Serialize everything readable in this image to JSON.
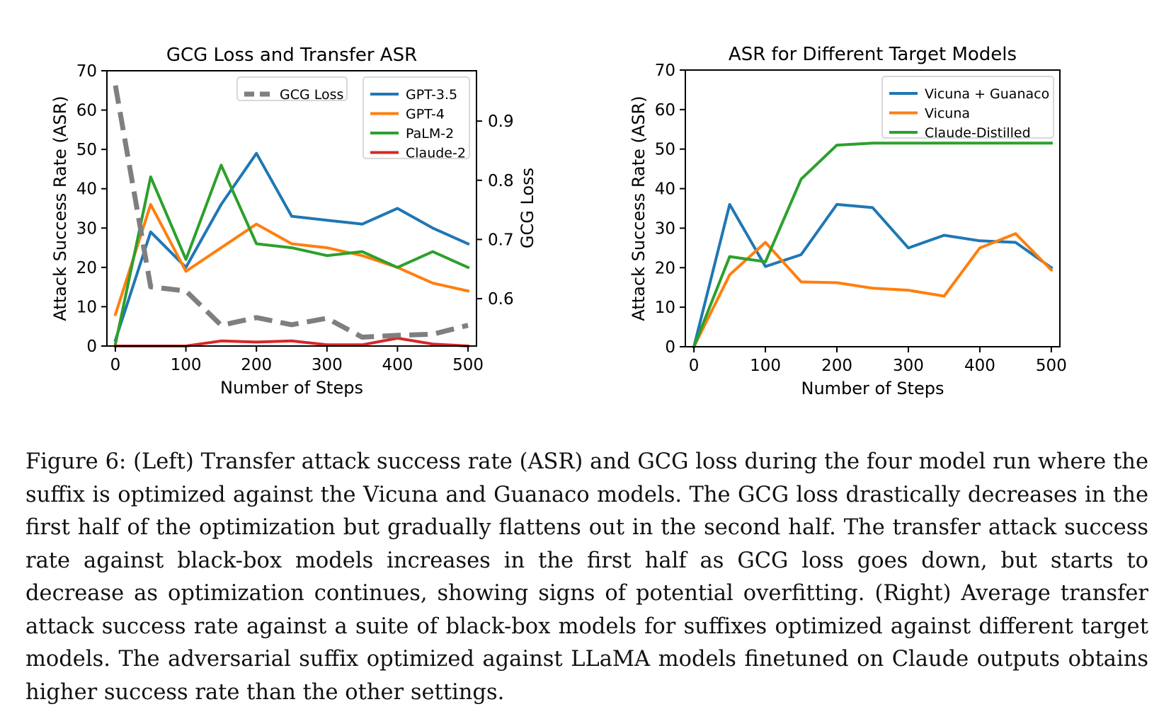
{
  "chart_data": [
    {
      "type": "line",
      "title": "GCG Loss and Transfer ASR",
      "xlabel": "Number of Steps",
      "ylabel": "Attack Success Rate (ASR)",
      "y2label": "GCG Loss",
      "xlim": [
        -12,
        512
      ],
      "ylim": [
        0,
        70
      ],
      "y2lim": [
        0.52,
        0.985
      ],
      "xticks": [
        0,
        100,
        200,
        300,
        400,
        500
      ],
      "yticks": [
        0,
        10,
        20,
        30,
        40,
        50,
        60,
        70
      ],
      "y2ticks": [
        0.6,
        0.7,
        0.8,
        0.9
      ],
      "grid": false,
      "x": [
        0,
        50,
        100,
        150,
        200,
        250,
        300,
        350,
        400,
        450,
        500
      ],
      "series": [
        {
          "name": "GPT-3.5",
          "color": "#1f77b4",
          "axis": "left",
          "values": [
            1.5,
            29,
            20,
            36,
            49,
            33,
            32,
            31,
            35,
            30,
            26
          ]
        },
        {
          "name": "GPT-4",
          "color": "#ff7f0e",
          "axis": "left",
          "values": [
            8,
            36,
            19,
            25,
            31,
            26,
            25,
            23,
            20,
            16,
            14
          ]
        },
        {
          "name": "PaLM-2",
          "color": "#2ca02c",
          "axis": "left",
          "values": [
            0.5,
            43,
            22,
            46,
            26,
            25,
            23,
            24,
            20,
            24,
            20
          ]
        },
        {
          "name": "Claude-2",
          "color": "#d62728",
          "axis": "left",
          "values": [
            0,
            0,
            0,
            1.3,
            1,
            1.3,
            0.3,
            0.3,
            2,
            0.5,
            0
          ]
        },
        {
          "name": "GCG Loss",
          "color": "#7f7f7f",
          "axis": "right",
          "dashed": true,
          "values": [
            0.96,
            0.62,
            0.613,
            0.555,
            0.568,
            0.556,
            0.567,
            0.535,
            0.538,
            0.54,
            0.555
          ]
        }
      ],
      "legend_left": {
        "location": "upper-center",
        "entries": [
          "GCG Loss"
        ]
      },
      "legend_right": {
        "location": "upper-right",
        "entries": [
          "GPT-3.5",
          "GPT-4",
          "PaLM-2",
          "Claude-2"
        ]
      }
    },
    {
      "type": "line",
      "title": "ASR for Different Target Models",
      "xlabel": "Number of Steps",
      "ylabel": "Attack Success Rate (ASR)",
      "xlim": [
        -12,
        512
      ],
      "ylim": [
        0,
        70
      ],
      "xticks": [
        0,
        100,
        200,
        300,
        400,
        500
      ],
      "yticks": [
        0,
        10,
        20,
        30,
        40,
        50,
        60,
        70
      ],
      "grid": false,
      "x": [
        0,
        50,
        100,
        150,
        200,
        250,
        300,
        350,
        400,
        450,
        500
      ],
      "series": [
        {
          "name": "Vicuna + Guanaco",
          "color": "#1f77b4",
          "values": [
            0,
            36,
            20.3,
            23.3,
            36,
            35.2,
            25,
            28.2,
            26.8,
            26.4,
            20
          ]
        },
        {
          "name": "Vicuna",
          "color": "#ff7f0e",
          "values": [
            0,
            18.2,
            26.4,
            16.4,
            16.2,
            14.8,
            14.3,
            12.8,
            25,
            28.6,
            19.4
          ]
        },
        {
          "name": "Claude-Distilled",
          "color": "#2ca02c",
          "values": [
            0,
            22.8,
            21.5,
            42.4,
            51,
            51.5,
            51.5,
            51.5,
            51.5,
            51.5,
            51.5
          ]
        }
      ],
      "legend": {
        "location": "upper-right",
        "entries": [
          "Vicuna + Guanaco",
          "Vicuna",
          "Claude-Distilled"
        ]
      }
    }
  ],
  "caption": "Figure 6: (Left) Transfer attack success rate (ASR) and GCG loss during the four model run where the suffix is optimized against the Vicuna and Guanaco models. The GCG loss drastically decreases in the first half of the optimization but gradually flattens out in the second half. The transfer attack success rate against black-box models increases in the first half as GCG loss goes down, but starts to decrease as optimization continues, showing signs of potential overfitting. (Right) Average transfer attack success rate against a suite of black-box models for suffixes optimized against different target models. The adversarial suffix optimized against LLaMA models finetuned on Claude outputs obtains higher success rate than the other settings."
}
